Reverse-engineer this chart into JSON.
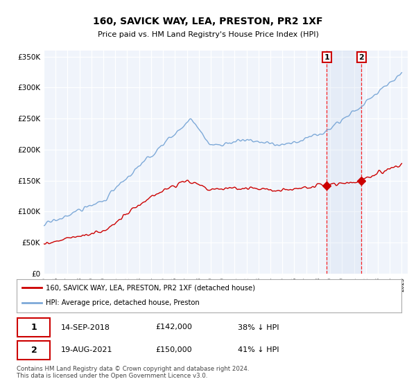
{
  "title": "160, SAVICK WAY, LEA, PRESTON, PR2 1XF",
  "subtitle": "Price paid vs. HM Land Registry's House Price Index (HPI)",
  "ylabel_labels": [
    "£0",
    "£50K",
    "£100K",
    "£150K",
    "£200K",
    "£250K",
    "£300K",
    "£350K"
  ],
  "ylim": [
    0,
    360000
  ],
  "yticks": [
    0,
    50000,
    100000,
    150000,
    200000,
    250000,
    300000,
    350000
  ],
  "sale1_date_label": "14-SEP-2018",
  "sale1_price": 142000,
  "sale1_price_label": "£142,000",
  "sale1_pct_label": "38% ↓ HPI",
  "sale2_date_label": "19-AUG-2021",
  "sale2_price": 150000,
  "sale2_price_label": "£150,000",
  "sale2_pct_label": "41% ↓ HPI",
  "legend_house_label": "160, SAVICK WAY, LEA, PRESTON, PR2 1XF (detached house)",
  "legend_hpi_label": "HPI: Average price, detached house, Preston",
  "footer": "Contains HM Land Registry data © Crown copyright and database right 2024.\nThis data is licensed under the Open Government Licence v3.0.",
  "house_color": "#cc0000",
  "hpi_color": "#7da9d8",
  "sale1_year": 2018.72,
  "sale2_year": 2021.63,
  "bg_color": "#f0f4fb",
  "grid_color": "#cccccc"
}
